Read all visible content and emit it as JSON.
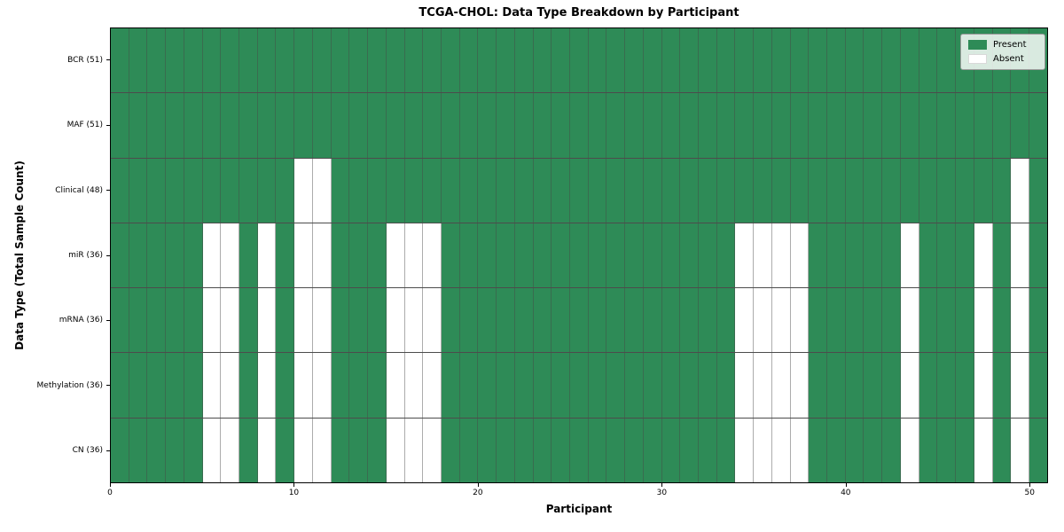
{
  "chart_data": {
    "type": "heatmap",
    "title": "TCGA-CHOL: Data Type Breakdown by Participant",
    "xlabel": "Participant",
    "ylabel": "Data Type (Total Sample Count)",
    "n_participants": 51,
    "x_range": [
      0,
      51
    ],
    "x_ticks": [
      0,
      10,
      20,
      30,
      40,
      50
    ],
    "legend_position": "upper right",
    "grid": true,
    "rows": [
      {
        "label": "BCR (51)",
        "present_count": 51,
        "absent_participants": []
      },
      {
        "label": "MAF (51)",
        "present_count": 51,
        "absent_participants": []
      },
      {
        "label": "Clinical (48)",
        "present_count": 48,
        "absent_participants": [
          10,
          11,
          49
        ]
      },
      {
        "label": "miR (36)",
        "present_count": 36,
        "absent_participants": [
          5,
          6,
          8,
          10,
          11,
          15,
          16,
          17,
          34,
          35,
          36,
          37,
          43,
          47,
          49
        ]
      },
      {
        "label": "mRNA (36)",
        "present_count": 36,
        "absent_participants": [
          5,
          6,
          8,
          10,
          11,
          15,
          16,
          17,
          34,
          35,
          36,
          37,
          43,
          47,
          49
        ]
      },
      {
        "label": "Methylation (36)",
        "present_count": 36,
        "absent_participants": [
          5,
          6,
          8,
          10,
          11,
          15,
          16,
          17,
          34,
          35,
          36,
          37,
          43,
          47,
          49
        ]
      },
      {
        "label": "CN (36)",
        "present_count": 36,
        "absent_participants": [
          5,
          6,
          8,
          10,
          11,
          15,
          16,
          17,
          34,
          35,
          36,
          37,
          43,
          47,
          49
        ]
      }
    ],
    "legend": [
      {
        "label": "Present",
        "color": "#2e8b57"
      },
      {
        "label": "Absent",
        "color": "#ffffff"
      }
    ],
    "colors": {
      "present": "#2e8b57",
      "absent": "#ffffff",
      "cell_edge": "rgba(70,70,70,0.45)",
      "row_edge": "rgba(0,0,0,0.7)",
      "axes_border": "#000000"
    }
  }
}
